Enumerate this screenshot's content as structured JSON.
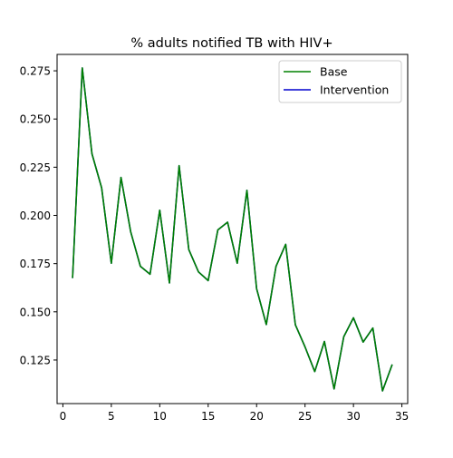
{
  "chart_data": {
    "type": "line",
    "title": "% adults notified TB with HIV+",
    "xlabel": "",
    "ylabel": "",
    "xlim": [
      -0.6,
      35.6
    ],
    "ylim": [
      0.1024,
      0.2835
    ],
    "x_ticks": [
      0,
      5,
      10,
      15,
      20,
      25,
      30,
      35
    ],
    "y_ticks": [
      0.125,
      0.15,
      0.175,
      0.2,
      0.225,
      0.25,
      0.275
    ],
    "x_tick_labels": [
      "0",
      "5",
      "10",
      "15",
      "20",
      "25",
      "30",
      "35"
    ],
    "y_tick_labels": [
      "0.125",
      "0.150",
      "0.175",
      "0.200",
      "0.225",
      "0.250",
      "0.275"
    ],
    "grid": false,
    "legend_position": "top-right",
    "x": [
      1,
      2,
      3,
      4,
      5,
      6,
      7,
      8,
      9,
      10,
      11,
      12,
      13,
      14,
      15,
      16,
      17,
      18,
      19,
      20,
      21,
      22,
      23,
      24,
      25,
      26,
      27,
      28,
      29,
      30,
      31,
      32,
      33,
      34
    ],
    "series": [
      {
        "name": "Base",
        "color": "#008000",
        "values": [
          0.1675,
          0.2765,
          0.232,
          0.2143,
          0.1752,
          0.2197,
          0.1915,
          0.1736,
          0.1695,
          0.2027,
          0.165,
          0.2258,
          0.1823,
          0.1707,
          0.1662,
          0.1925,
          0.1965,
          0.1752,
          0.213,
          0.162,
          0.1434,
          0.1735,
          0.185,
          0.1433,
          0.1318,
          0.119,
          0.1346,
          0.11,
          0.1371,
          0.1469,
          0.1343,
          0.1416,
          0.109,
          0.1227
        ]
      },
      {
        "name": "Intervention",
        "color": "#0000cd",
        "values": [
          0.1675,
          0.2765,
          0.232,
          0.2143,
          0.1752,
          0.2197,
          0.1915,
          0.1736,
          0.1695,
          0.2027,
          0.165,
          0.2258,
          0.1823,
          0.1707,
          0.1662,
          0.1925,
          0.1965,
          0.1752,
          0.213,
          0.162,
          0.1434,
          0.1735,
          0.185,
          0.1433,
          0.1318,
          0.119,
          0.1346,
          0.11,
          0.1371,
          0.1469,
          0.1343,
          0.1416,
          0.109,
          0.1227
        ]
      }
    ],
    "draw_order": [
      "Intervention",
      "Base"
    ]
  }
}
